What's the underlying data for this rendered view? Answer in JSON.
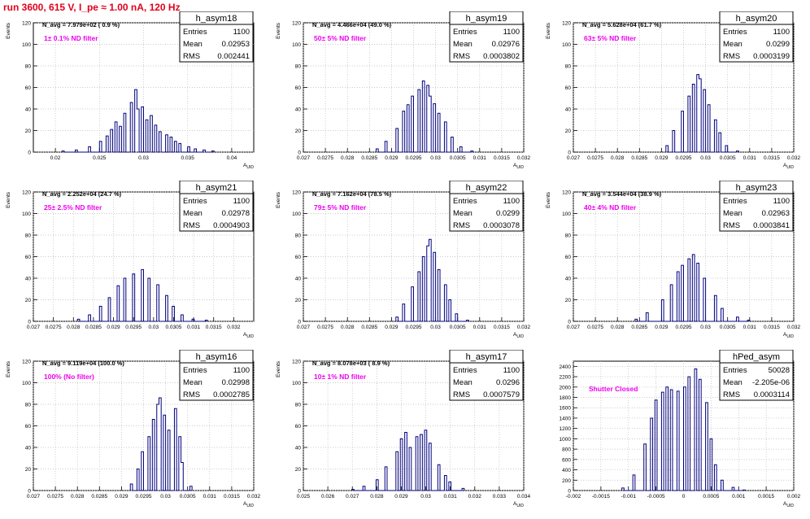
{
  "run_title": "run 3600,   615 V, I_pe ≈ 1.00 nA, 120 Hz",
  "stat_labels": {
    "entries": "Entries",
    "mean": "Mean",
    "rms": "RMS"
  },
  "chart_data": [
    {
      "type": "bar",
      "name": "h_asym18",
      "navg": "N_avg = 7.979e+02 ( 0.9 %)",
      "filter": "1± 0.1% ND filter",
      "entries": "1100",
      "mean": "0.02953",
      "rms": "0.002441",
      "xlabel": "A_UID",
      "ylabel": "Events",
      "xlim": [
        0.0175,
        0.0425
      ],
      "ylim": [
        0,
        120
      ],
      "xticks": [
        0.02,
        0.025,
        0.03,
        0.035,
        0.04
      ],
      "xtick_labels": [
        "0.02",
        "0.025",
        "0.03",
        "0.035",
        "0.04"
      ],
      "yticks": [
        0,
        20,
        40,
        60,
        80,
        100,
        120
      ],
      "nbins": 100,
      "x": [
        0.021,
        0.0225,
        0.024,
        0.025,
        0.026,
        0.0265,
        0.027,
        0.0275,
        0.028,
        0.0285,
        0.029,
        0.0295,
        0.03,
        0.0305,
        0.031,
        0.0315,
        0.032,
        0.0325,
        0.033,
        0.0335,
        0.034,
        0.035,
        0.036,
        0.037,
        0.038
      ],
      "values": [
        1,
        2,
        5,
        10,
        15,
        21,
        28,
        24,
        36,
        46,
        58,
        40,
        42,
        30,
        34,
        25,
        19,
        16,
        14,
        10,
        8,
        5,
        3,
        2,
        1
      ]
    },
    {
      "type": "bar",
      "name": "h_asym19",
      "navg": "N_avg = 4.466e+04 (49.0 %)",
      "filter": "50± 5% ND filter",
      "entries": "1100",
      "mean": "0.02976",
      "rms": "0.0003802",
      "xlabel": "A_UID",
      "ylabel": "Events",
      "xlim": [
        0.027,
        0.032
      ],
      "ylim": [
        0,
        120
      ],
      "xticks": [
        0.027,
        0.0275,
        0.028,
        0.0285,
        0.029,
        0.0295,
        0.03,
        0.0305,
        0.031,
        0.0315,
        0.032
      ],
      "xtick_labels": [
        "0.027",
        "0.0275",
        "0.028",
        "0.0285",
        "0.029",
        "0.0295",
        "0.03",
        "0.0305",
        "0.031",
        "0.0315",
        "0.032"
      ],
      "yticks": [
        0,
        20,
        40,
        60,
        80,
        100,
        120
      ],
      "nbins": 100,
      "x": [
        0.0287,
        0.0289,
        0.0291,
        0.0293,
        0.0294,
        0.0295,
        0.0296,
        0.0297,
        0.0298,
        0.0299,
        0.03,
        0.0301,
        0.0302,
        0.0304,
        0.0306,
        0.0308
      ],
      "values": [
        3,
        10,
        22,
        38,
        44,
        52,
        58,
        66,
        62,
        52,
        45,
        36,
        28,
        14,
        5,
        1
      ]
    },
    {
      "type": "bar",
      "name": "h_asym20",
      "navg": "N_avg = 5.628e+04 (61.7 %)",
      "filter": "63± 5% ND filter",
      "entries": "1100",
      "mean": "0.0299",
      "rms": "0.0003199",
      "xlabel": "A_UID",
      "ylabel": "Events",
      "xlim": [
        0.027,
        0.032
      ],
      "ylim": [
        0,
        120
      ],
      "xticks": [
        0.027,
        0.0275,
        0.028,
        0.0285,
        0.029,
        0.0295,
        0.03,
        0.0305,
        0.031,
        0.0315,
        0.032
      ],
      "xtick_labels": [
        "0.027",
        "0.0275",
        "0.028",
        "0.0285",
        "0.029",
        "0.0295",
        "0.03",
        "0.0305",
        "0.031",
        "0.0315",
        "0.032"
      ],
      "yticks": [
        0,
        20,
        40,
        60,
        80,
        100,
        120
      ],
      "nbins": 100,
      "x": [
        0.0291,
        0.0293,
        0.0295,
        0.0296,
        0.0297,
        0.0298,
        0.0299,
        0.03,
        0.0301,
        0.0302,
        0.0303,
        0.0305,
        0.0307
      ],
      "values": [
        6,
        20,
        38,
        52,
        63,
        72,
        68,
        58,
        44,
        30,
        18,
        6,
        1
      ]
    },
    {
      "type": "bar",
      "name": "h_asym21",
      "navg": "N_avg = 2.252e+04 (24.7 %)",
      "filter": "25± 2.5% ND filter",
      "entries": "1100",
      "mean": "0.02978",
      "rms": "0.0004903",
      "xlabel": "A_UID",
      "ylabel": "Events",
      "xlim": [
        0.027,
        0.0325
      ],
      "ylim": [
        0,
        120
      ],
      "xticks": [
        0.027,
        0.0275,
        0.028,
        0.0285,
        0.029,
        0.0295,
        0.03,
        0.0305,
        0.031,
        0.0315,
        0.032
      ],
      "xtick_labels": [
        "0.027",
        "0.0275",
        "0.028",
        "0.0285",
        "0.029",
        "0.0295",
        "0.03",
        "0.0305",
        "0.031",
        "0.0315",
        "0.032"
      ],
      "yticks": [
        0,
        20,
        40,
        60,
        80,
        100,
        120
      ],
      "nbins": 100,
      "x": [
        0.0281,
        0.0284,
        0.0287,
        0.0289,
        0.0291,
        0.0293,
        0.0295,
        0.0297,
        0.0299,
        0.0301,
        0.0303,
        0.0305,
        0.0307,
        0.031,
        0.0313
      ],
      "values": [
        2,
        6,
        14,
        22,
        33,
        40,
        44,
        48,
        40,
        34,
        24,
        14,
        6,
        2,
        1
      ]
    },
    {
      "type": "bar",
      "name": "h_asym22",
      "navg": "N_avg = 7.162e+04 (78.5 %)",
      "filter": "79± 5% ND filter",
      "entries": "1100",
      "mean": "0.0299",
      "rms": "0.0003078",
      "xlabel": "A_UID",
      "ylabel": "Events",
      "xlim": [
        0.027,
        0.032
      ],
      "ylim": [
        0,
        120
      ],
      "xticks": [
        0.027,
        0.0275,
        0.028,
        0.0285,
        0.029,
        0.0295,
        0.03,
        0.0305,
        0.031,
        0.0315,
        0.032
      ],
      "xtick_labels": [
        "0.027",
        "0.0275",
        "0.028",
        "0.0285",
        "0.029",
        "0.0295",
        "0.03",
        "0.0305",
        "0.031",
        "0.0315",
        "0.032"
      ],
      "yticks": [
        0,
        20,
        40,
        60,
        80,
        100,
        120
      ],
      "nbins": 100,
      "x": [
        0.0291,
        0.0293,
        0.0295,
        0.0296,
        0.0297,
        0.0298,
        0.0299,
        0.03,
        0.0301,
        0.0302,
        0.0303,
        0.0305,
        0.0307
      ],
      "values": [
        4,
        16,
        32,
        46,
        60,
        70,
        76,
        64,
        48,
        34,
        20,
        7,
        1
      ]
    },
    {
      "type": "bar",
      "name": "h_asym23",
      "navg": "N_avg = 3.544e+04 (38.9 %)",
      "filter": "40± 4% ND filter",
      "entries": "1100",
      "mean": "0.02963",
      "rms": "0.0003841",
      "xlabel": "A_UID",
      "ylabel": "Events",
      "xlim": [
        0.027,
        0.032
      ],
      "ylim": [
        0,
        120
      ],
      "xticks": [
        0.027,
        0.0275,
        0.028,
        0.0285,
        0.029,
        0.0295,
        0.03,
        0.0305,
        0.031,
        0.0315,
        0.032
      ],
      "xtick_labels": [
        "0.027",
        "0.0275",
        "0.028",
        "0.0285",
        "0.029",
        "0.0295",
        "0.03",
        "0.0305",
        "0.031",
        "0.0315",
        "0.032"
      ],
      "yticks": [
        0,
        20,
        40,
        60,
        80,
        100,
        120
      ],
      "nbins": 100,
      "x": [
        0.0284,
        0.0287,
        0.029,
        0.0292,
        0.0294,
        0.0295,
        0.0296,
        0.0297,
        0.0298,
        0.03,
        0.0302,
        0.0304,
        0.0307,
        0.031
      ],
      "values": [
        2,
        8,
        20,
        34,
        46,
        52,
        58,
        62,
        54,
        40,
        24,
        12,
        4,
        1
      ]
    },
    {
      "type": "bar",
      "name": "h_asym16",
      "navg": "N_avg = 9.119e+04 (100.0 %)",
      "filter": "100% (No filter)",
      "entries": "1100",
      "mean": "0.02998",
      "rms": "0.0002785",
      "xlabel": "A_UID",
      "ylabel": "Events",
      "xlim": [
        0.027,
        0.032
      ],
      "ylim": [
        0,
        120
      ],
      "xticks": [
        0.027,
        0.0275,
        0.028,
        0.0285,
        0.029,
        0.0295,
        0.03,
        0.0305,
        0.031,
        0.0315,
        0.032
      ],
      "xtick_labels": [
        "0.027",
        "0.0275",
        "0.028",
        "0.0285",
        "0.029",
        "0.0295",
        "0.03",
        "0.0305",
        "0.031",
        "0.0315",
        "0.032"
      ],
      "yticks": [
        0,
        20,
        40,
        60,
        80,
        100,
        120
      ],
      "nbins": 100,
      "x": [
        0.0292,
        0.0294,
        0.0295,
        0.0296,
        0.0297,
        0.0298,
        0.0299,
        0.03,
        0.0301,
        0.0302,
        0.0303,
        0.0304,
        0.0306
      ],
      "values": [
        6,
        20,
        36,
        50,
        66,
        80,
        86,
        70,
        56,
        76,
        50,
        26,
        4
      ]
    },
    {
      "type": "bar",
      "name": "h_asym17",
      "navg": "N_avg = 8.078e+03 ( 8.9 %)",
      "filter": "10± 1% ND filter",
      "entries": "1100",
      "mean": "0.0296",
      "rms": "0.0007579",
      "xlabel": "A_UID",
      "ylabel": "Events",
      "xlim": [
        0.025,
        0.034
      ],
      "ylim": [
        0,
        120
      ],
      "xticks": [
        0.025,
        0.026,
        0.027,
        0.028,
        0.029,
        0.03,
        0.031,
        0.032,
        0.033,
        0.034
      ],
      "xtick_labels": [
        "0.025",
        "0.026",
        "0.027",
        "0.028",
        "0.029",
        "0.03",
        "0.031",
        "0.032",
        "0.033",
        "0.034"
      ],
      "yticks": [
        0,
        20,
        40,
        60,
        80,
        100,
        120
      ],
      "nbins": 100,
      "x": [
        0.027,
        0.0275,
        0.028,
        0.0284,
        0.0288,
        0.029,
        0.0292,
        0.0294,
        0.0296,
        0.0298,
        0.03,
        0.0302,
        0.0305,
        0.0308,
        0.031,
        0.0315
      ],
      "values": [
        1,
        4,
        10,
        22,
        36,
        48,
        54,
        40,
        50,
        52,
        56,
        44,
        24,
        14,
        8,
        2
      ]
    },
    {
      "type": "bar",
      "name": "hPed_asym",
      "navg": "",
      "filter": "Shutter Closed",
      "entries": "50028",
      "mean": "-2.205e-06",
      "rms": "0.0003114",
      "xlabel": "A_UID",
      "ylabel": "",
      "xlim": [
        -0.002,
        0.002
      ],
      "ylim": [
        0,
        2500
      ],
      "xticks": [
        -0.002,
        -0.0015,
        -0.001,
        -0.0005,
        0,
        0.0005,
        0.001,
        0.0015,
        0.002
      ],
      "xtick_labels": [
        "-0.002",
        "-0.0015",
        "-0.001",
        "-0.0005",
        "0",
        "0.0005",
        "0.001",
        "0.0015",
        "0.002"
      ],
      "yticks": [
        0,
        200,
        400,
        600,
        800,
        1000,
        1200,
        1400,
        1600,
        1800,
        2000,
        2200,
        2400
      ],
      "nbins": 100,
      "x": [
        -0.0011,
        -0.0009,
        -0.0007,
        -0.0006,
        -0.0005,
        -0.0004,
        -0.0003,
        -0.0002,
        -0.0001,
        0,
        0.0001,
        0.0002,
        0.0003,
        0.0004,
        0.0005,
        0.0006,
        0.0007,
        0.0009,
        0.0011
      ],
      "values": [
        50,
        300,
        900,
        1400,
        1750,
        1900,
        2000,
        1950,
        1920,
        2000,
        2200,
        2350,
        2150,
        1700,
        1000,
        500,
        200,
        60,
        10
      ]
    }
  ]
}
